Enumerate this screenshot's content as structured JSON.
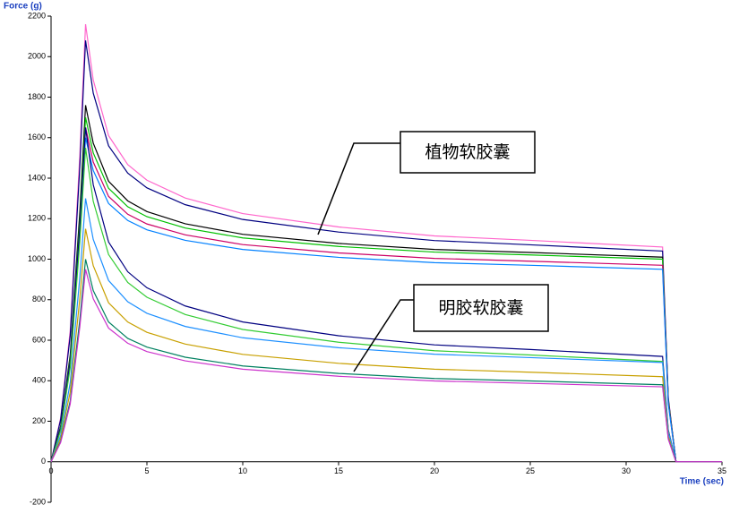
{
  "chart_data": {
    "type": "line",
    "y_label": "Force (g)",
    "x_label": "Time (sec)",
    "annotations": [
      "植物软胶囊",
      "明胶软胶囊"
    ],
    "xlim": [
      0,
      35
    ],
    "ylim": [
      -200,
      2200
    ],
    "xticks": [
      0,
      5,
      10,
      15,
      20,
      25,
      30,
      35
    ],
    "yticks": [
      -200,
      0,
      200,
      400,
      600,
      800,
      1000,
      1200,
      1400,
      1600,
      1800,
      2000,
      2200
    ],
    "grid": false,
    "x": [
      0,
      0.5,
      1,
      1.5,
      1.8,
      2.2,
      3,
      4,
      5,
      7,
      10,
      15,
      20,
      25,
      31.9,
      32.2,
      32.6,
      35
    ],
    "series": [
      {
        "color": "#ff66cc",
        "values": [
          0,
          216,
          648,
          1512,
          2160,
          1885,
          1610,
          1467,
          1390,
          1302,
          1225,
          1159,
          1115,
          1093,
          1060,
          318,
          0,
          0
        ]
      },
      {
        "color": "#000080",
        "values": [
          0,
          208,
          624,
          1456,
          2080,
          1820,
          1560,
          1425,
          1352,
          1269,
          1196,
          1134,
          1092,
          1071,
          1040,
          312,
          0,
          0
        ]
      },
      {
        "color": "#000000",
        "values": [
          0,
          176,
          528,
          1232,
          1760,
          1573,
          1385,
          1288,
          1235,
          1175,
          1123,
          1078,
          1048,
          1033,
          1010,
          303,
          0,
          0
        ]
      },
      {
        "color": "#00c000",
        "values": [
          0,
          170,
          510,
          1190,
          1700,
          1525,
          1350,
          1259,
          1210,
          1154,
          1105,
          1063,
          1035,
          1021,
          1000,
          300,
          0,
          0
        ]
      },
      {
        "color": "#cc0066",
        "values": [
          0,
          165,
          495,
          1155,
          1650,
          1480,
          1310,
          1222,
          1174,
          1120,
          1072,
          1031,
          1004,
          990,
          970,
          291,
          0,
          0
        ]
      },
      {
        "color": "#0080ff",
        "values": [
          0,
          160,
          480,
          1120,
          1600,
          1438,
          1275,
          1191,
          1145,
          1093,
          1048,
          1009,
          983,
          970,
          950,
          285,
          0,
          0
        ]
      },
      {
        "color": "#000080",
        "values": [
          0,
          165,
          495,
          1155,
          1650,
          1368,
          1085,
          938,
          859,
          769,
          690,
          622,
          577,
          554,
          520,
          156,
          0,
          0
        ]
      },
      {
        "color": "#33cc33",
        "values": [
          0,
          155,
          465,
          1085,
          1550,
          1286,
          1023,
          885,
          812,
          727,
          653,
          590,
          548,
          527,
          495,
          149,
          0,
          0
        ]
      },
      {
        "color": "#1e90ff",
        "values": [
          0,
          130,
          390,
          910,
          1300,
          1098,
          895,
          790,
          733,
          668,
          612,
          563,
          531,
          514,
          490,
          147,
          0,
          0
        ]
      },
      {
        "color": "#c8a000",
        "values": [
          0,
          115,
          345,
          805,
          1150,
          968,
          785,
          690,
          639,
          581,
          530,
          486,
          457,
          442,
          420,
          126,
          0,
          0
        ]
      },
      {
        "color": "#008060",
        "values": [
          0,
          100,
          300,
          700,
          1000,
          845,
          690,
          609,
          566,
          516,
          473,
          436,
          411,
          399,
          380,
          114,
          0,
          0
        ]
      },
      {
        "color": "#cc33cc",
        "values": [
          0,
          95,
          285,
          665,
          950,
          805,
          660,
          585,
          544,
          498,
          457,
          422,
          399,
          387,
          370,
          111,
          0,
          0
        ]
      }
    ]
  }
}
